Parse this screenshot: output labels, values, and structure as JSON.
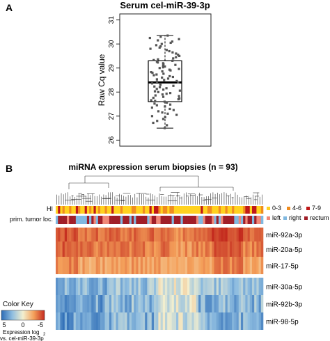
{
  "figure": {
    "panel_a": "A",
    "panel_b": "B"
  },
  "chart_data": [
    {
      "type": "box",
      "title": "Serum cel-miR-39-3p",
      "xlabel": "",
      "ylabel": "Raw Cq value",
      "ylim": [
        26,
        31
      ],
      "ticks": [
        "26",
        "27",
        "28",
        "29",
        "30",
        "31"
      ],
      "box": {
        "min": 26.5,
        "q1": 27.6,
        "median": 28.4,
        "q3": 29.3,
        "max": 30.35
      },
      "points": [
        26.5,
        26.62,
        26.72,
        26.8,
        26.88,
        26.95,
        27.0,
        27.05,
        27.1,
        27.15,
        27.2,
        27.25,
        27.3,
        27.35,
        27.4,
        27.45,
        27.48,
        27.52,
        27.56,
        27.6,
        27.63,
        27.66,
        27.7,
        27.73,
        27.76,
        27.8,
        27.83,
        27.86,
        27.9,
        27.93,
        27.96,
        28.0,
        28.03,
        28.06,
        28.1,
        28.13,
        28.16,
        28.2,
        28.23,
        28.26,
        28.3,
        28.33,
        28.36,
        28.4,
        28.43,
        28.46,
        28.5,
        28.53,
        28.56,
        28.6,
        28.63,
        28.66,
        28.7,
        28.73,
        28.76,
        28.8,
        28.83,
        28.86,
        28.9,
        28.93,
        28.96,
        29.0,
        29.03,
        29.06,
        29.1,
        29.13,
        29.16,
        29.2,
        29.23,
        29.26,
        29.3,
        29.33,
        29.36,
        29.4,
        29.45,
        29.5,
        29.55,
        29.6,
        29.65,
        29.7,
        29.75,
        29.8,
        29.85,
        29.9,
        29.95,
        30.0,
        30.05,
        30.1,
        30.15,
        30.2,
        30.25,
        30.3,
        30.35
      ],
      "colors": {
        "points": "#555555",
        "box": "#000000"
      }
    },
    {
      "type": "heatmap",
      "title": "miRNA expression serum biopsies (n = 93)",
      "n_columns": 93,
      "rows": [
        "miR-92a-3p",
        "miR-20a-5p",
        "miR-17-5p",
        "miR-30a-5p",
        "miR-92b-3p",
        "miR-98-5p"
      ],
      "annotation_rows": [
        "HI",
        "prim. tumor loc."
      ],
      "legend_hi": [
        {
          "label": "0-3",
          "color": "#ffd21f"
        },
        {
          "label": "4-6",
          "color": "#f08c1e"
        },
        {
          "label": "7-9",
          "color": "#c01818"
        }
      ],
      "legend_loc": [
        {
          "label": "left",
          "color": "#f08878"
        },
        {
          "label": "right",
          "color": "#80b8e0"
        },
        {
          "label": "rectum",
          "color": "#a01e28"
        }
      ],
      "color_key": {
        "title": "Color Key",
        "ticks": [
          "5",
          "0",
          "-5"
        ],
        "label_line1": "Expression log",
        "label_line2": "vs. cel-miR-39-3p",
        "colors": [
          "#2c6bb5",
          "#8fbde0",
          "#f3efcf",
          "#f4a05a",
          "#c42a1e"
        ]
      },
      "colors": {
        "dendrogram": "#333333"
      }
    }
  ]
}
